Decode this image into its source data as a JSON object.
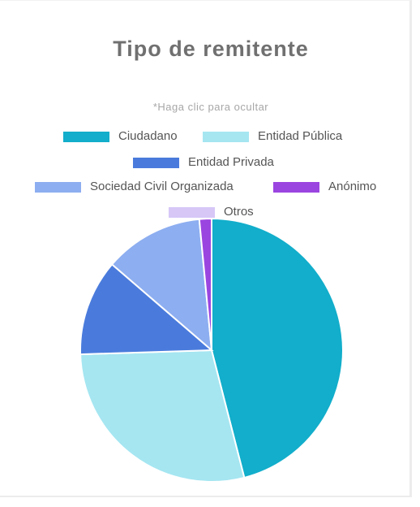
{
  "chart_data": {
    "type": "pie",
    "title": "Tipo de remitente",
    "subtitle": "*Haga clic para ocultar",
    "legend_position": "top",
    "series": [
      {
        "name": "Ciudadano",
        "value": 46.0,
        "color": "#12aecb"
      },
      {
        "name": "Entidad Pública",
        "value": 28.5,
        "color": "#a5e6f1"
      },
      {
        "name": "Entidad Privada",
        "value": 11.8,
        "color": "#4a7bdc"
      },
      {
        "name": "Sociedad Civil Organizada",
        "value": 12.2,
        "color": "#8daef0"
      },
      {
        "name": "Anónimo",
        "value": 1.5,
        "color": "#9b45e0"
      },
      {
        "name": "Otros",
        "value": 0.0,
        "color": "#d6c7f7"
      }
    ]
  }
}
